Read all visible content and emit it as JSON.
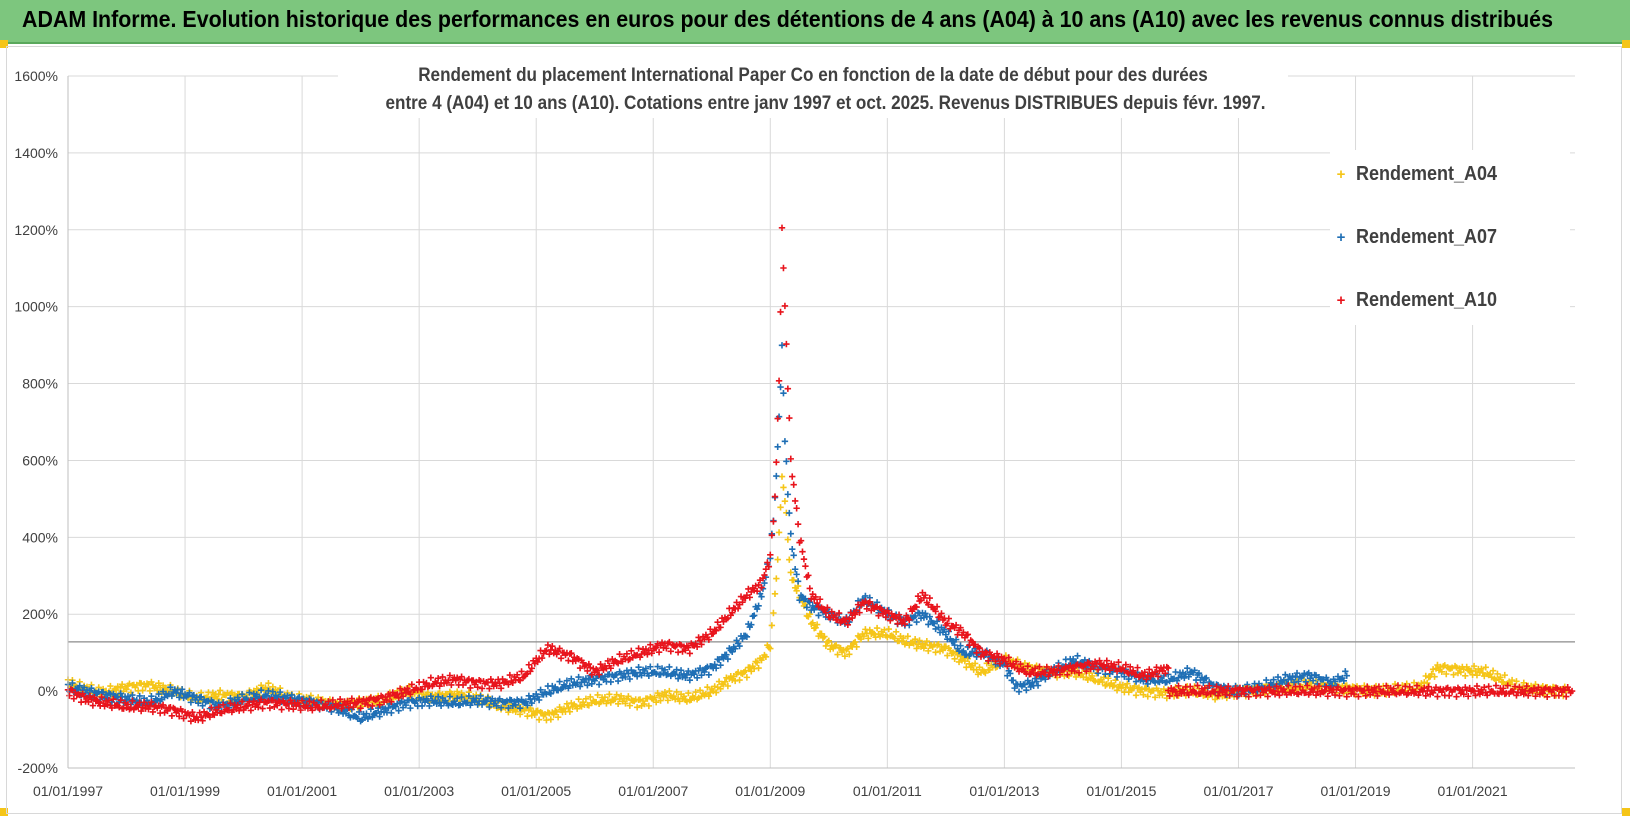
{
  "header": {
    "title": "ADAM Informe. Evolution historique des performances en euros pour des détentions de 4 ans (A04) à 10 ans (A10) avec les revenus connus distribués"
  },
  "chart_data": {
    "type": "scatter",
    "title_line1": "Rendement du placement International Paper Co en fonction de la date de début pour des durées",
    "title_line2": "entre 4 (A04) et 10 ans (A10). Cotations entre janv 1997 et oct. 2025.  Revenus DISTRIBUES depuis févr. 1997.",
    "xlabel": "",
    "ylabel": "",
    "xlim": [
      1997.0,
      2022.75
    ],
    "ylim": [
      -200,
      1600
    ],
    "y_ticks": [
      -200,
      0,
      200,
      400,
      600,
      800,
      1000,
      1200,
      1400,
      1600
    ],
    "y_tick_labels": [
      "-200%",
      "0%",
      "200%",
      "400%",
      "600%",
      "800%",
      "1000%",
      "1200%",
      "1400%",
      "1600%"
    ],
    "x_ticks": [
      1997,
      1999,
      2001,
      2003,
      2005,
      2007,
      2009,
      2011,
      2013,
      2015,
      2017,
      2019,
      2021
    ],
    "x_tick_labels": [
      "01/01/1997",
      "01/01/1999",
      "01/01/2001",
      "01/01/2003",
      "01/01/2005",
      "01/01/2007",
      "01/01/2009",
      "01/01/2011",
      "01/01/2013",
      "01/01/2015",
      "01/01/2017",
      "01/01/2019",
      "01/01/2021"
    ],
    "reference_line_y": 128,
    "grid": true,
    "legend_position": "top-right",
    "marker": "+",
    "series": [
      {
        "name": "Rendement_A04",
        "color": "#f5c518",
        "x": [
          1997.0,
          1997.3,
          1997.6,
          1998.0,
          1998.4,
          1998.8,
          1999.2,
          1999.6,
          2000.0,
          2000.4,
          2000.8,
          2001.2,
          2001.6,
          2002.0,
          2002.4,
          2002.8,
          2003.2,
          2003.6,
          2004.0,
          2004.4,
          2004.8,
          2005.2,
          2005.6,
          2006.0,
          2006.4,
          2006.8,
          2007.2,
          2007.6,
          2008.0,
          2008.3,
          2008.6,
          2008.85,
          2009.0,
          2009.08,
          2009.15,
          2009.2,
          2009.25,
          2009.35,
          2009.5,
          2009.7,
          2010.0,
          2010.3,
          2010.6,
          2011.0,
          2011.3,
          2011.6,
          2012.0,
          2012.3,
          2012.6,
          2013.0,
          2013.4,
          2013.8,
          2014.2,
          2014.6,
          2015.0,
          2015.4,
          2015.8,
          2016.2,
          2016.6,
          2017.0,
          2017.4,
          2017.8,
          2018.2,
          2018.6,
          2019.0,
          2019.4,
          2019.8,
          2020.1,
          2020.4,
          2020.8,
          2021.2,
          2021.5,
          2021.8,
          2022.2,
          2022.6
        ],
        "y": [
          20,
          5,
          -5,
          10,
          15,
          0,
          -20,
          -10,
          -15,
          10,
          -20,
          -25,
          -35,
          -30,
          -25,
          0,
          -15,
          -10,
          -20,
          -40,
          -50,
          -65,
          -40,
          -25,
          -20,
          -30,
          -10,
          -20,
          0,
          30,
          50,
          80,
          120,
          250,
          400,
          560,
          500,
          300,
          250,
          180,
          120,
          100,
          150,
          150,
          130,
          120,
          110,
          80,
          50,
          80,
          60,
          50,
          50,
          30,
          10,
          0,
          -5,
          0,
          -10,
          0,
          5,
          10,
          15,
          10,
          5,
          0,
          5,
          10,
          60,
          55,
          50,
          30,
          10,
          5,
          0
        ]
      },
      {
        "name": "Rendement_A07",
        "color": "#1f6fb5",
        "x": [
          1997.0,
          1997.3,
          1997.6,
          1998.0,
          1998.4,
          1998.8,
          1999.2,
          1999.6,
          2000.0,
          2000.4,
          2000.8,
          2001.2,
          2001.6,
          2002.0,
          2002.4,
          2002.8,
          2003.2,
          2003.6,
          2004.0,
          2004.4,
          2004.8,
          2005.2,
          2005.6,
          2006.0,
          2006.4,
          2006.8,
          2007.2,
          2007.6,
          2008.0,
          2008.3,
          2008.6,
          2008.85,
          2009.0,
          2009.08,
          2009.15,
          2009.2,
          2009.25,
          2009.35,
          2009.5,
          2009.7,
          2010.0,
          2010.3,
          2010.6,
          2011.0,
          2011.3,
          2011.6,
          2012.0,
          2012.3,
          2012.6,
          2013.0,
          2013.2,
          2013.5,
          2013.8,
          2014.2,
          2014.6,
          2015.0,
          2015.4,
          2015.8,
          2016.2,
          2016.6,
          2017.0,
          2017.4,
          2017.8,
          2018.2,
          2018.6,
          2018.85
        ],
        "y": [
          10,
          0,
          -10,
          -20,
          -30,
          0,
          -20,
          -40,
          -20,
          -10,
          -20,
          -30,
          -45,
          -70,
          -50,
          -30,
          -25,
          -30,
          -25,
          -30,
          -30,
          0,
          20,
          30,
          40,
          50,
          50,
          40,
          60,
          100,
          150,
          250,
          350,
          500,
          700,
          900,
          650,
          400,
          250,
          220,
          200,
          180,
          240,
          200,
          180,
          200,
          150,
          100,
          100,
          70,
          10,
          20,
          50,
          80,
          60,
          50,
          30,
          30,
          50,
          10,
          0,
          10,
          30,
          40,
          20,
          40
        ]
      },
      {
        "name": "Rendement_A10",
        "color": "#e8141c",
        "x": [
          1997.0,
          1997.3,
          1997.6,
          1998.0,
          1998.4,
          1998.8,
          1999.2,
          1999.6,
          2000.0,
          2000.4,
          2000.8,
          2001.2,
          2001.6,
          2002.0,
          2002.4,
          2002.8,
          2003.2,
          2003.6,
          2004.0,
          2004.4,
          2004.8,
          2005.0,
          2005.2,
          2005.6,
          2006.0,
          2006.4,
          2006.8,
          2007.2,
          2007.6,
          2008.0,
          2008.3,
          2008.6,
          2008.85,
          2009.0,
          2009.08,
          2009.15,
          2009.2,
          2009.25,
          2009.35,
          2009.5,
          2009.7,
          2010.0,
          2010.3,
          2010.6,
          2011.0,
          2011.3,
          2011.6,
          2012.0,
          2012.3,
          2012.6,
          2013.0,
          2013.4,
          2013.8,
          2014.2,
          2014.6,
          2015.0,
          2015.4,
          2015.8
        ],
        "y": [
          0,
          -20,
          -30,
          -40,
          -40,
          -50,
          -70,
          -50,
          -40,
          -30,
          -35,
          -40,
          -35,
          -30,
          -20,
          0,
          20,
          30,
          20,
          20,
          40,
          80,
          110,
          90,
          50,
          80,
          100,
          120,
          110,
          150,
          200,
          250,
          280,
          350,
          500,
          800,
          1200,
          1000,
          600,
          400,
          250,
          200,
          180,
          230,
          200,
          180,
          250,
          180,
          150,
          100,
          80,
          50,
          50,
          60,
          70,
          60,
          40,
          60
        ]
      },
      {
        "name": "",
        "color": "#e8141c",
        "x": [
          2015.8,
          2016.2,
          2016.6,
          2017.0,
          2017.4,
          2017.8,
          2018.2,
          2018.6,
          2019.0,
          2019.4,
          2019.8,
          2020.2,
          2020.6,
          2021.0,
          2021.4,
          2021.8,
          2022.2,
          2022.7
        ],
        "y": [
          0,
          0,
          0,
          0,
          0,
          0,
          0,
          0,
          0,
          0,
          0,
          0,
          0,
          0,
          0,
          0,
          0,
          0
        ]
      }
    ]
  }
}
